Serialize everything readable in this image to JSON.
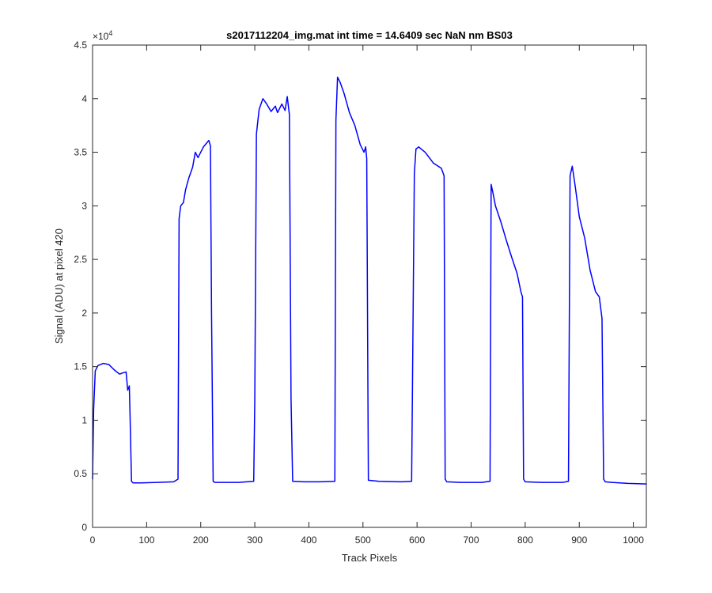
{
  "chart_data": {
    "type": "line",
    "title": "s2017112204_img.mat int time = 14.6409 sec  NaN nm BS03",
    "xlabel": "Track Pixels",
    "ylabel": "Signal (ADU) at pixel 420",
    "y_exponent_label": "×10",
    "y_exponent_value": "4",
    "xlim": [
      0,
      1024
    ],
    "ylim": [
      0,
      45000
    ],
    "xticks": [
      0,
      100,
      200,
      300,
      400,
      500,
      600,
      700,
      800,
      900,
      1000
    ],
    "xtick_labels": [
      "0",
      "100",
      "200",
      "300",
      "400",
      "500",
      "600",
      "700",
      "800",
      "900",
      "1000"
    ],
    "yticks": [
      0,
      5000,
      10000,
      15000,
      20000,
      25000,
      30000,
      35000,
      40000,
      45000
    ],
    "ytick_labels": [
      "0",
      "0.5",
      "1",
      "1.5",
      "2",
      "2.5",
      "3",
      "3.5",
      "4",
      "4.5"
    ],
    "grid": false,
    "series": [
      {
        "color": "#0000ff",
        "x": [
          0,
          2,
          5,
          10,
          20,
          30,
          40,
          50,
          55,
          62,
          65,
          68,
          70,
          72,
          75,
          90,
          120,
          150,
          158,
          160,
          163,
          168,
          172,
          178,
          185,
          190,
          195,
          200,
          205,
          210,
          215,
          218,
          220,
          223,
          226,
          240,
          270,
          298,
          300,
          303,
          308,
          315,
          322,
          330,
          338,
          342,
          350,
          356,
          360,
          364,
          367,
          370,
          390,
          420,
          448,
          450,
          453,
          458,
          465,
          475,
          485,
          495,
          502,
          505,
          507,
          510,
          530,
          570,
          590,
          595,
          598,
          603,
          615,
          630,
          645,
          650,
          652,
          655,
          680,
          720,
          735,
          737,
          740,
          745,
          755,
          765,
          775,
          785,
          792,
          795,
          797,
          800,
          830,
          870,
          880,
          883,
          887,
          892,
          900,
          910,
          920,
          930,
          937,
          942,
          945,
          948,
          960,
          990,
          1024
        ],
        "y": [
          4500,
          11000,
          14600,
          15100,
          15300,
          15200,
          14700,
          14300,
          14400,
          14500,
          12800,
          13200,
          9000,
          4300,
          4150,
          4150,
          4200,
          4250,
          4500,
          28800,
          30000,
          30300,
          31500,
          32600,
          33600,
          35000,
          34500,
          35000,
          35500,
          35800,
          36100,
          35600,
          20000,
          4300,
          4200,
          4200,
          4200,
          4300,
          12000,
          36700,
          39000,
          40000,
          39500,
          38800,
          39300,
          38700,
          39500,
          38900,
          40200,
          38500,
          12000,
          4300,
          4250,
          4250,
          4300,
          38000,
          42000,
          41500,
          40500,
          38700,
          37500,
          35700,
          35000,
          35500,
          34400,
          4400,
          4300,
          4250,
          4300,
          33000,
          35300,
          35500,
          35000,
          34000,
          33500,
          32800,
          4500,
          4250,
          4200,
          4200,
          4300,
          32000,
          31300,
          30000,
          28500,
          26800,
          25200,
          23700,
          22000,
          21500,
          4500,
          4250,
          4200,
          4200,
          4300,
          32800,
          33700,
          32000,
          29000,
          27000,
          24000,
          22000,
          21500,
          19500,
          4500,
          4250,
          4200,
          4100,
          4050
        ]
      }
    ]
  }
}
